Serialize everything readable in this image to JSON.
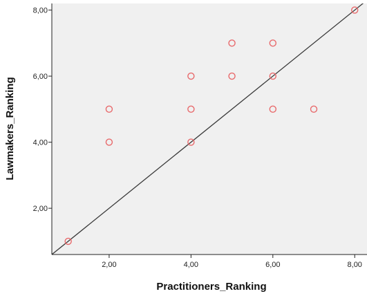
{
  "chart_data": {
    "type": "scatter",
    "title": "",
    "xlabel": "Practitioners_Ranking",
    "ylabel": "Lawmakers_Ranking",
    "xlim": [
      0.6,
      8.3
    ],
    "ylim": [
      0.6,
      8.2
    ],
    "x_ticks": [
      {
        "value": 2,
        "label": "2,00"
      },
      {
        "value": 4,
        "label": "4,00"
      },
      {
        "value": 6,
        "label": "6,00"
      },
      {
        "value": 8,
        "label": "8,00"
      }
    ],
    "y_ticks": [
      {
        "value": 2,
        "label": "2,00"
      },
      {
        "value": 4,
        "label": "4,00"
      },
      {
        "value": 6,
        "label": "6,00"
      },
      {
        "value": 8,
        "label": "8,00"
      }
    ],
    "grid": false,
    "reference_line": "y = x",
    "series": [
      {
        "points": [
          {
            "x": 1,
            "y": 1
          },
          {
            "x": 2,
            "y": 4
          },
          {
            "x": 2,
            "y": 5
          },
          {
            "x": 4,
            "y": 4
          },
          {
            "x": 4,
            "y": 5
          },
          {
            "x": 4,
            "y": 6
          },
          {
            "x": 5,
            "y": 6
          },
          {
            "x": 5,
            "y": 7
          },
          {
            "x": 6,
            "y": 5
          },
          {
            "x": 6,
            "y": 6
          },
          {
            "x": 6,
            "y": 7
          },
          {
            "x": 7,
            "y": 5
          },
          {
            "x": 8,
            "y": 8
          }
        ]
      }
    ]
  },
  "colors": {
    "plot_background": "#f0f0f0",
    "point_stroke": "#e8696b",
    "reference_line": "#3a3a3a",
    "axis": "#222222"
  }
}
